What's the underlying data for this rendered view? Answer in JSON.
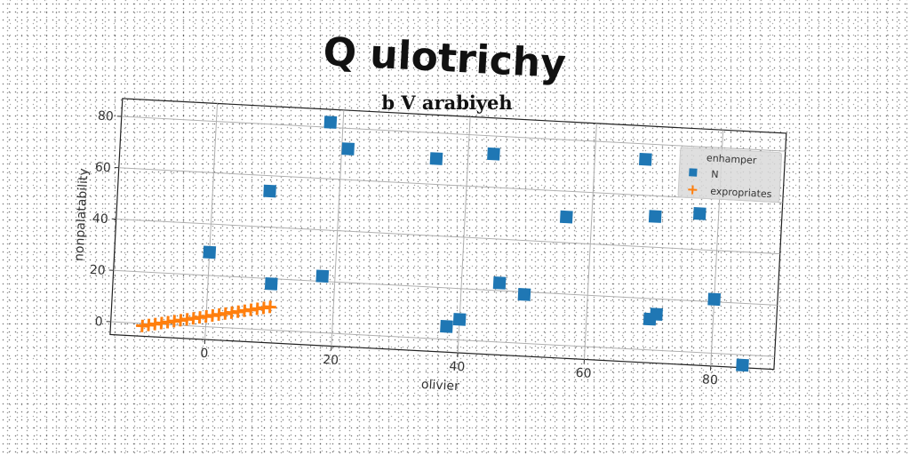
{
  "chart_data": {
    "type": "scatter",
    "title": "Q ulotrichy",
    "subtitle": "b V arabiyeh",
    "xlabel": "olivier",
    "ylabel": "nonpalatability",
    "xlim": [
      -15,
      90
    ],
    "ylim": [
      -5,
      87
    ],
    "x_ticks": [
      0,
      20,
      40,
      60,
      80
    ],
    "y_ticks": [
      0,
      20,
      40,
      60,
      80
    ],
    "grid": true,
    "legend": {
      "title": "enhamper",
      "position": "top-right"
    },
    "series": [
      {
        "name": "N",
        "marker": "square",
        "color": "#1f77b4",
        "points": [
          [
            0,
            29
          ],
          [
            9,
            54
          ],
          [
            10,
            18
          ],
          [
            18,
            82
          ],
          [
            18,
            22
          ],
          [
            21,
            72
          ],
          [
            35,
            70
          ],
          [
            38,
            5
          ],
          [
            40,
            8
          ],
          [
            44,
            73
          ],
          [
            46,
            23
          ],
          [
            50,
            19
          ],
          [
            56,
            50
          ],
          [
            68,
            74
          ],
          [
            70,
            52
          ],
          [
            70,
            12
          ],
          [
            71,
            14
          ],
          [
            77,
            54
          ],
          [
            80,
            21
          ],
          [
            85,
            -4
          ]
        ]
      },
      {
        "name": "expropriates",
        "marker": "plus",
        "color": "#ff7f0e",
        "points": [
          [
            -10,
            -1
          ],
          [
            -9,
            -0.5
          ],
          [
            -8,
            0
          ],
          [
            -7,
            0.5
          ],
          [
            -6,
            1
          ],
          [
            -5,
            1.5
          ],
          [
            -4,
            2
          ],
          [
            -3,
            2.5
          ],
          [
            -2,
            3
          ],
          [
            -1,
            3.5
          ],
          [
            0,
            4
          ],
          [
            1,
            4.5
          ],
          [
            2,
            5
          ],
          [
            3,
            5.5
          ],
          [
            4,
            6
          ],
          [
            5,
            6.5
          ],
          [
            6,
            7
          ],
          [
            7,
            7.5
          ],
          [
            8,
            8
          ],
          [
            9,
            8.5
          ],
          [
            10,
            9
          ]
        ]
      }
    ]
  }
}
